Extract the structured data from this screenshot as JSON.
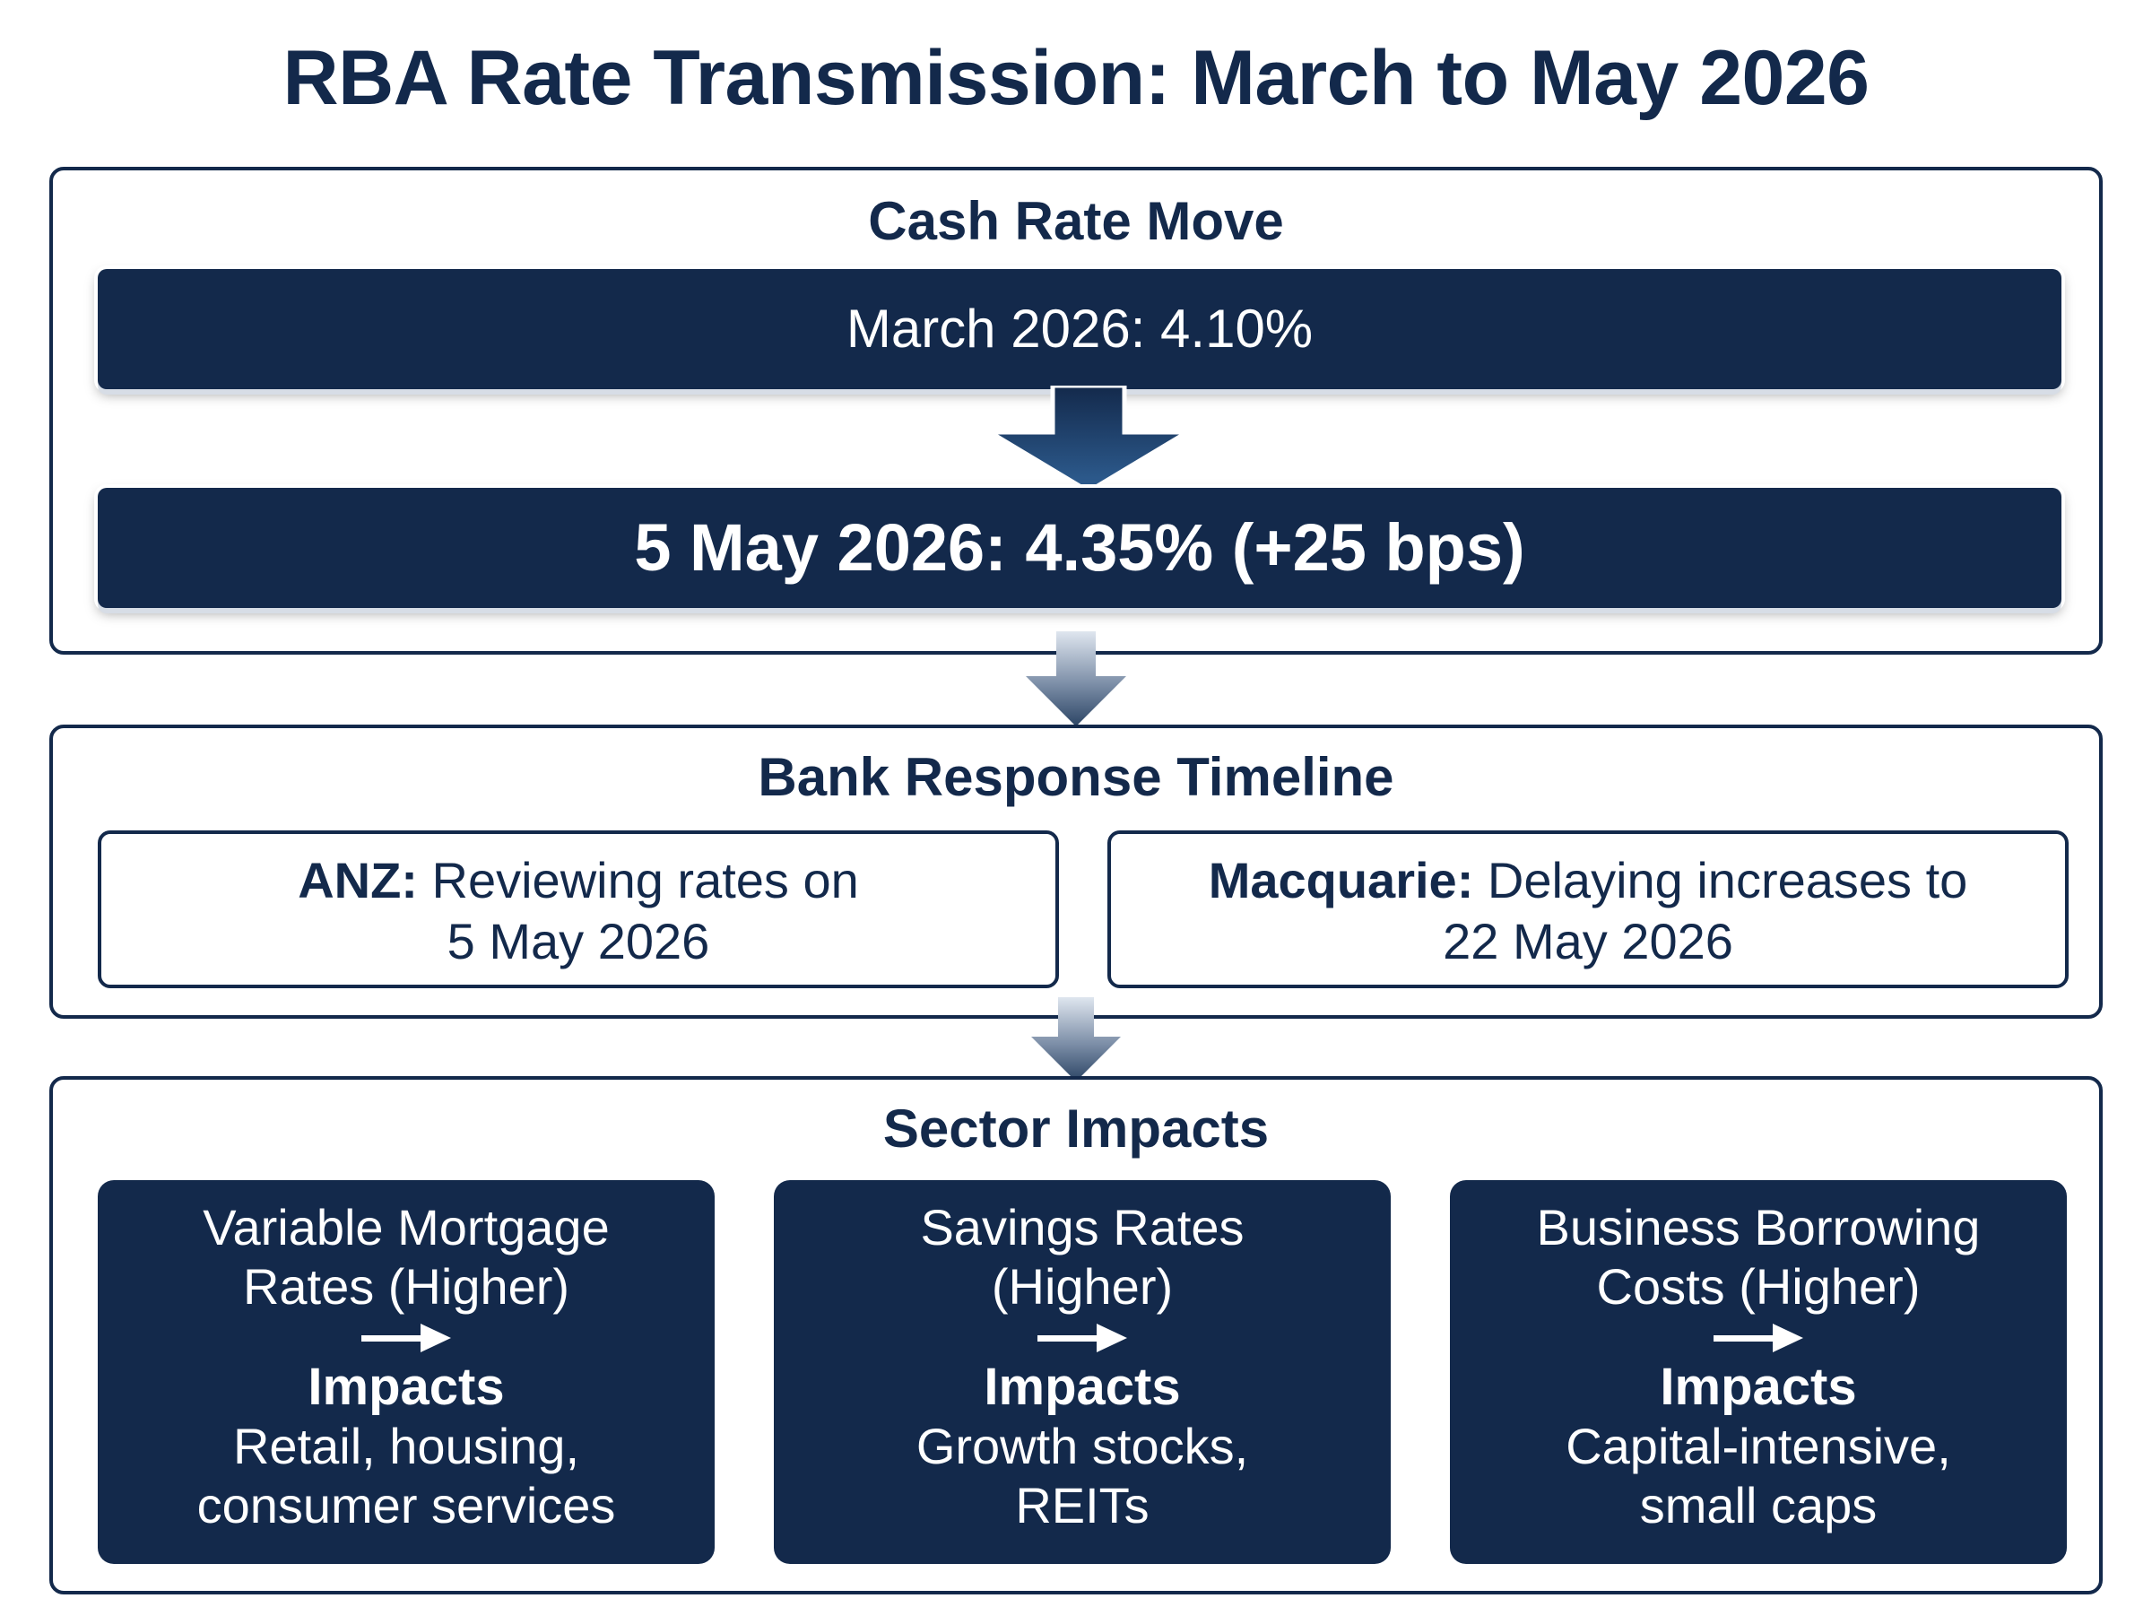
{
  "title": "RBA Rate Transmission: March to May 2026",
  "cash_rate": {
    "heading": "Cash Rate Move",
    "from_label": "March 2026: 4.10%",
    "to_label": "5 May 2026: 4.35% (+25 bps)"
  },
  "bank_response": {
    "heading": "Bank Response Timeline",
    "banks": [
      {
        "name": "ANZ:",
        "line1": " Reviewing rates on",
        "line2": "5 May 2026"
      },
      {
        "name": "Macquarie:",
        "line1": " Delaying increases to",
        "line2": "22 May 2026"
      }
    ]
  },
  "sector_impacts": {
    "heading": "Sector Impacts",
    "impacts_label": "Impacts",
    "sectors": [
      {
        "head1": "Variable Mortgage",
        "head2": "Rates (Higher)",
        "detail1": "Retail, housing,",
        "detail2": "consumer services"
      },
      {
        "head1": "Savings Rates",
        "head2": "(Higher)",
        "detail1": "Growth stocks,",
        "detail2": "REITs"
      },
      {
        "head1": "Business Borrowing",
        "head2": "Costs (Higher)",
        "detail1": "Capital-intensive,",
        "detail2": "small caps"
      }
    ]
  },
  "colors": {
    "navy": "#13294b",
    "white": "#ffffff",
    "arrow_light": "#b7c4d6"
  },
  "icons": [
    "down-arrow-icon",
    "right-arrow-icon"
  ]
}
